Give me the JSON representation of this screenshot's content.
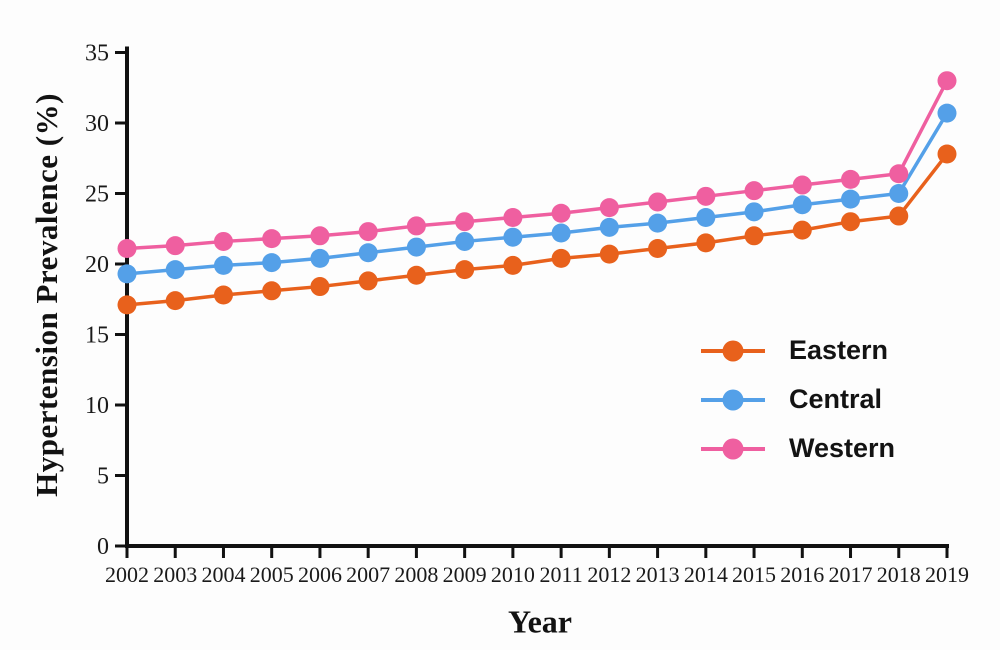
{
  "figure": {
    "y_axis_title": "Hypertension Prevalence (%)",
    "x_axis_title": "Year"
  },
  "chart_data": {
    "type": "line",
    "title": "",
    "xlabel": "Year",
    "ylabel": "Hypertension Prevalence (%)",
    "x": [
      2002,
      2003,
      2004,
      2005,
      2006,
      2007,
      2008,
      2009,
      2010,
      2011,
      2012,
      2013,
      2014,
      2015,
      2016,
      2017,
      2018,
      2019
    ],
    "ylim": [
      0,
      35
    ],
    "yticks": [
      0,
      5,
      10,
      15,
      20,
      25,
      30,
      35
    ],
    "grid": false,
    "legend_position": "inside-right-middle",
    "marker": "circle",
    "series": [
      {
        "name": "Eastern",
        "color": "#E8611C",
        "values": [
          17.1,
          17.4,
          17.8,
          18.1,
          18.4,
          18.8,
          19.2,
          19.6,
          19.9,
          20.4,
          20.7,
          21.1,
          21.5,
          22.0,
          22.4,
          23.0,
          23.4,
          27.8
        ]
      },
      {
        "name": "Central",
        "color": "#54A0E8",
        "values": [
          19.3,
          19.6,
          19.9,
          20.1,
          20.4,
          20.8,
          21.2,
          21.6,
          21.9,
          22.2,
          22.6,
          22.9,
          23.3,
          23.7,
          24.2,
          24.6,
          25.0,
          30.7
        ]
      },
      {
        "name": "Western",
        "color": "#EF5FA0",
        "values": [
          21.1,
          21.3,
          21.6,
          21.8,
          22.0,
          22.3,
          22.7,
          23.0,
          23.3,
          23.6,
          24.0,
          24.4,
          24.8,
          25.2,
          25.6,
          26.0,
          26.4,
          33.0
        ]
      }
    ],
    "axis_color": "#111111",
    "tick_label_color": "#1a1a1a"
  }
}
